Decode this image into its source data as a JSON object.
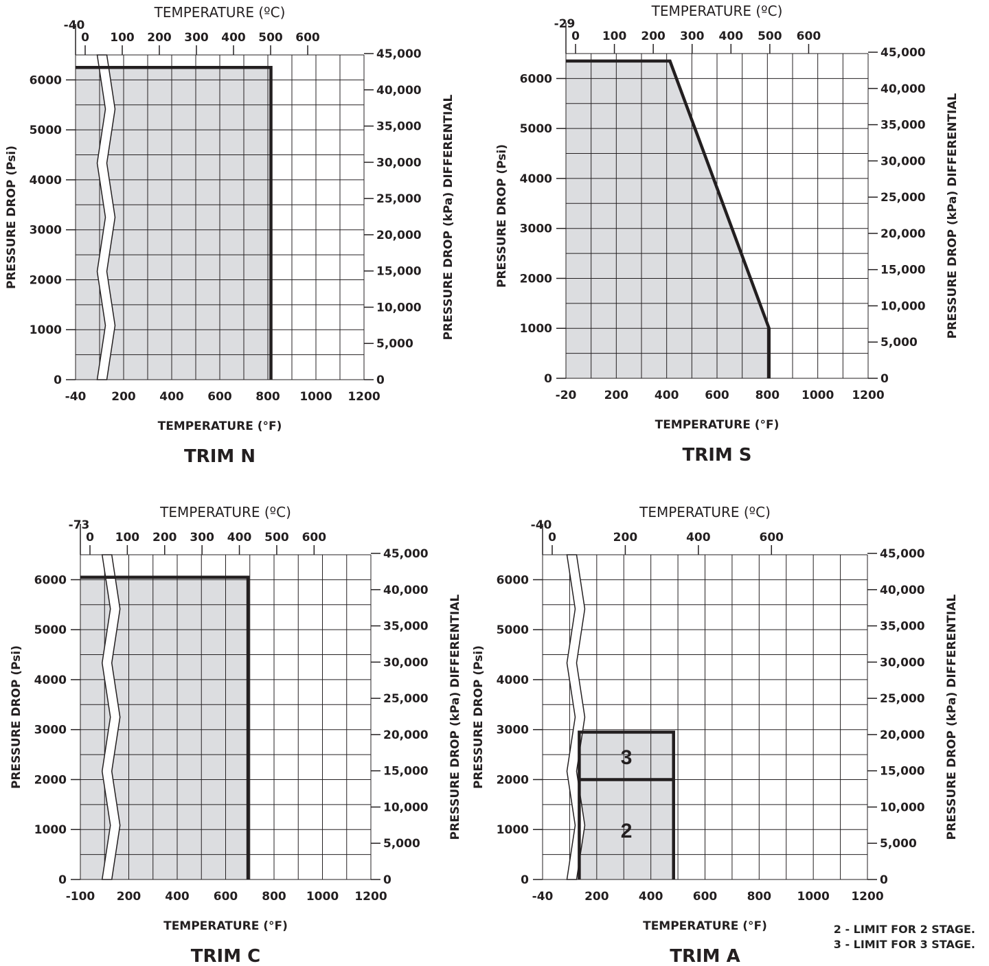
{
  "colors": {
    "fill": "#dcdde0",
    "line": "#231f20",
    "grid": "#231f20",
    "background": "#ffffff"
  },
  "chart_data": [
    {
      "type": "area",
      "title": "TRIM N",
      "xlabel": "TEMPERATURE (°F)",
      "x2label": "TEMPERATURE (ºC)",
      "ylabel": "PRESSURE DROP (Psi)",
      "y2label": "PRESSURE DROP (kPa) DIFFERENTIAL",
      "xlim": [
        -40,
        1200
      ],
      "ylim": [
        0,
        6500
      ],
      "x_ticks": [
        "-40",
        "200",
        "400",
        "600",
        "800",
        "1000",
        "1200"
      ],
      "x2_ticks": [
        "-40",
        "0",
        "100",
        "200",
        "300",
        "400",
        "500",
        "600"
      ],
      "y_ticks": [
        "0",
        "1000",
        "2000",
        "3000",
        "4000",
        "5000",
        "6000"
      ],
      "y2_ticks": [
        "0",
        "5,000",
        "10,000",
        "15,000",
        "20,000",
        "25,000",
        "30,000",
        "35,000",
        "40,000",
        "45,000"
      ],
      "axis_break": true,
      "grid": true,
      "series": [
        {
          "x": [
            -40,
            800,
            800
          ],
          "y": [
            6250,
            6250,
            0
          ]
        }
      ]
    },
    {
      "type": "area",
      "title": "TRIM S",
      "xlabel": "TEMPERATURE (°F)",
      "x2label": "TEMPERATURE (ºC)",
      "ylabel": "PRESSURE DROP (Psi)",
      "y2label": "PRESSURE DROP (kPa) DIFFERENTIAL",
      "xlim": [
        -20,
        1200
      ],
      "ylim": [
        0,
        6500
      ],
      "x_ticks": [
        "-20",
        "200",
        "400",
        "600",
        "800",
        "1000",
        "1200"
      ],
      "x2_ticks": [
        "-29",
        "0",
        "100",
        "200",
        "300",
        "400",
        "500",
        "600"
      ],
      "y_ticks": [
        "0",
        "1000",
        "2000",
        "3000",
        "4000",
        "5000",
        "6000"
      ],
      "y2_ticks": [
        "0",
        "5,000",
        "10,000",
        "15,000",
        "20,000",
        "25,000",
        "30,000",
        "35,000",
        "40,000",
        "45,000"
      ],
      "axis_break": false,
      "grid": true,
      "series": [
        {
          "x": [
            -20,
            400,
            800,
            800
          ],
          "y": [
            6350,
            6350,
            1000,
            0
          ]
        }
      ]
    },
    {
      "type": "area",
      "title": "TRIM C",
      "xlabel": "TEMPERATURE (°F)",
      "x2label": "TEMPERATURE (ºC)",
      "ylabel": "PRESSURE DROP (Psi)",
      "y2label": "PRESSURE DROP (kPa) DIFFERENTIAL",
      "xlim": [
        -100,
        1200
      ],
      "ylim": [
        0,
        6500
      ],
      "x_ticks": [
        "-100",
        "200",
        "400",
        "600",
        "800",
        "1000",
        "1200"
      ],
      "x2_ticks": [
        "-73",
        "0",
        "100",
        "200",
        "300",
        "400",
        "500",
        "600"
      ],
      "y_ticks": [
        "0",
        "1000",
        "2000",
        "3000",
        "4000",
        "5000",
        "6000"
      ],
      "y2_ticks": [
        "0",
        "5,000",
        "10,000",
        "15,000",
        "20,000",
        "25,000",
        "30,000",
        "35,000",
        "40,000",
        "45,000"
      ],
      "axis_break": true,
      "grid": true,
      "series": [
        {
          "x": [
            -100,
            650,
            650
          ],
          "y": [
            6050,
            6050,
            0
          ]
        }
      ]
    },
    {
      "type": "area",
      "title": "TRIM A",
      "xlabel": "TEMPERATURE (°F)",
      "x2label": "TEMPERATURE (ºC)",
      "ylabel": "PRESSURE DROP (Psi)",
      "y2label": "PRESSURE DROP (kPa) DIFFERENTIAL",
      "xlim": [
        -40,
        1200
      ],
      "ylim": [
        0,
        6500
      ],
      "x_ticks": [
        "-40",
        "200",
        "400",
        "600",
        "800",
        "1000",
        "1200"
      ],
      "x2_ticks": [
        "-40",
        "0",
        "200",
        "400",
        "600"
      ],
      "y_ticks": [
        "0",
        "1000",
        "2000",
        "3000",
        "4000",
        "5000",
        "6000"
      ],
      "y2_ticks": [
        "0",
        "5,000",
        "10,000",
        "15,000",
        "20,000",
        "25,000",
        "30,000",
        "35,000",
        "40,000",
        "45,000"
      ],
      "axis_break": true,
      "grid": true,
      "series": [
        {
          "name": "2",
          "x": [
            100,
            100,
            460,
            460
          ],
          "y": [
            0,
            2000,
            2000,
            0
          ]
        },
        {
          "name": "3",
          "x": [
            100,
            100,
            460,
            460
          ],
          "y": [
            2000,
            2950,
            2950,
            2000
          ]
        }
      ],
      "legend": [
        "2 - LIMIT FOR 2 STAGE.",
        "3 - LIMIT FOR 3 STAGE."
      ]
    }
  ]
}
